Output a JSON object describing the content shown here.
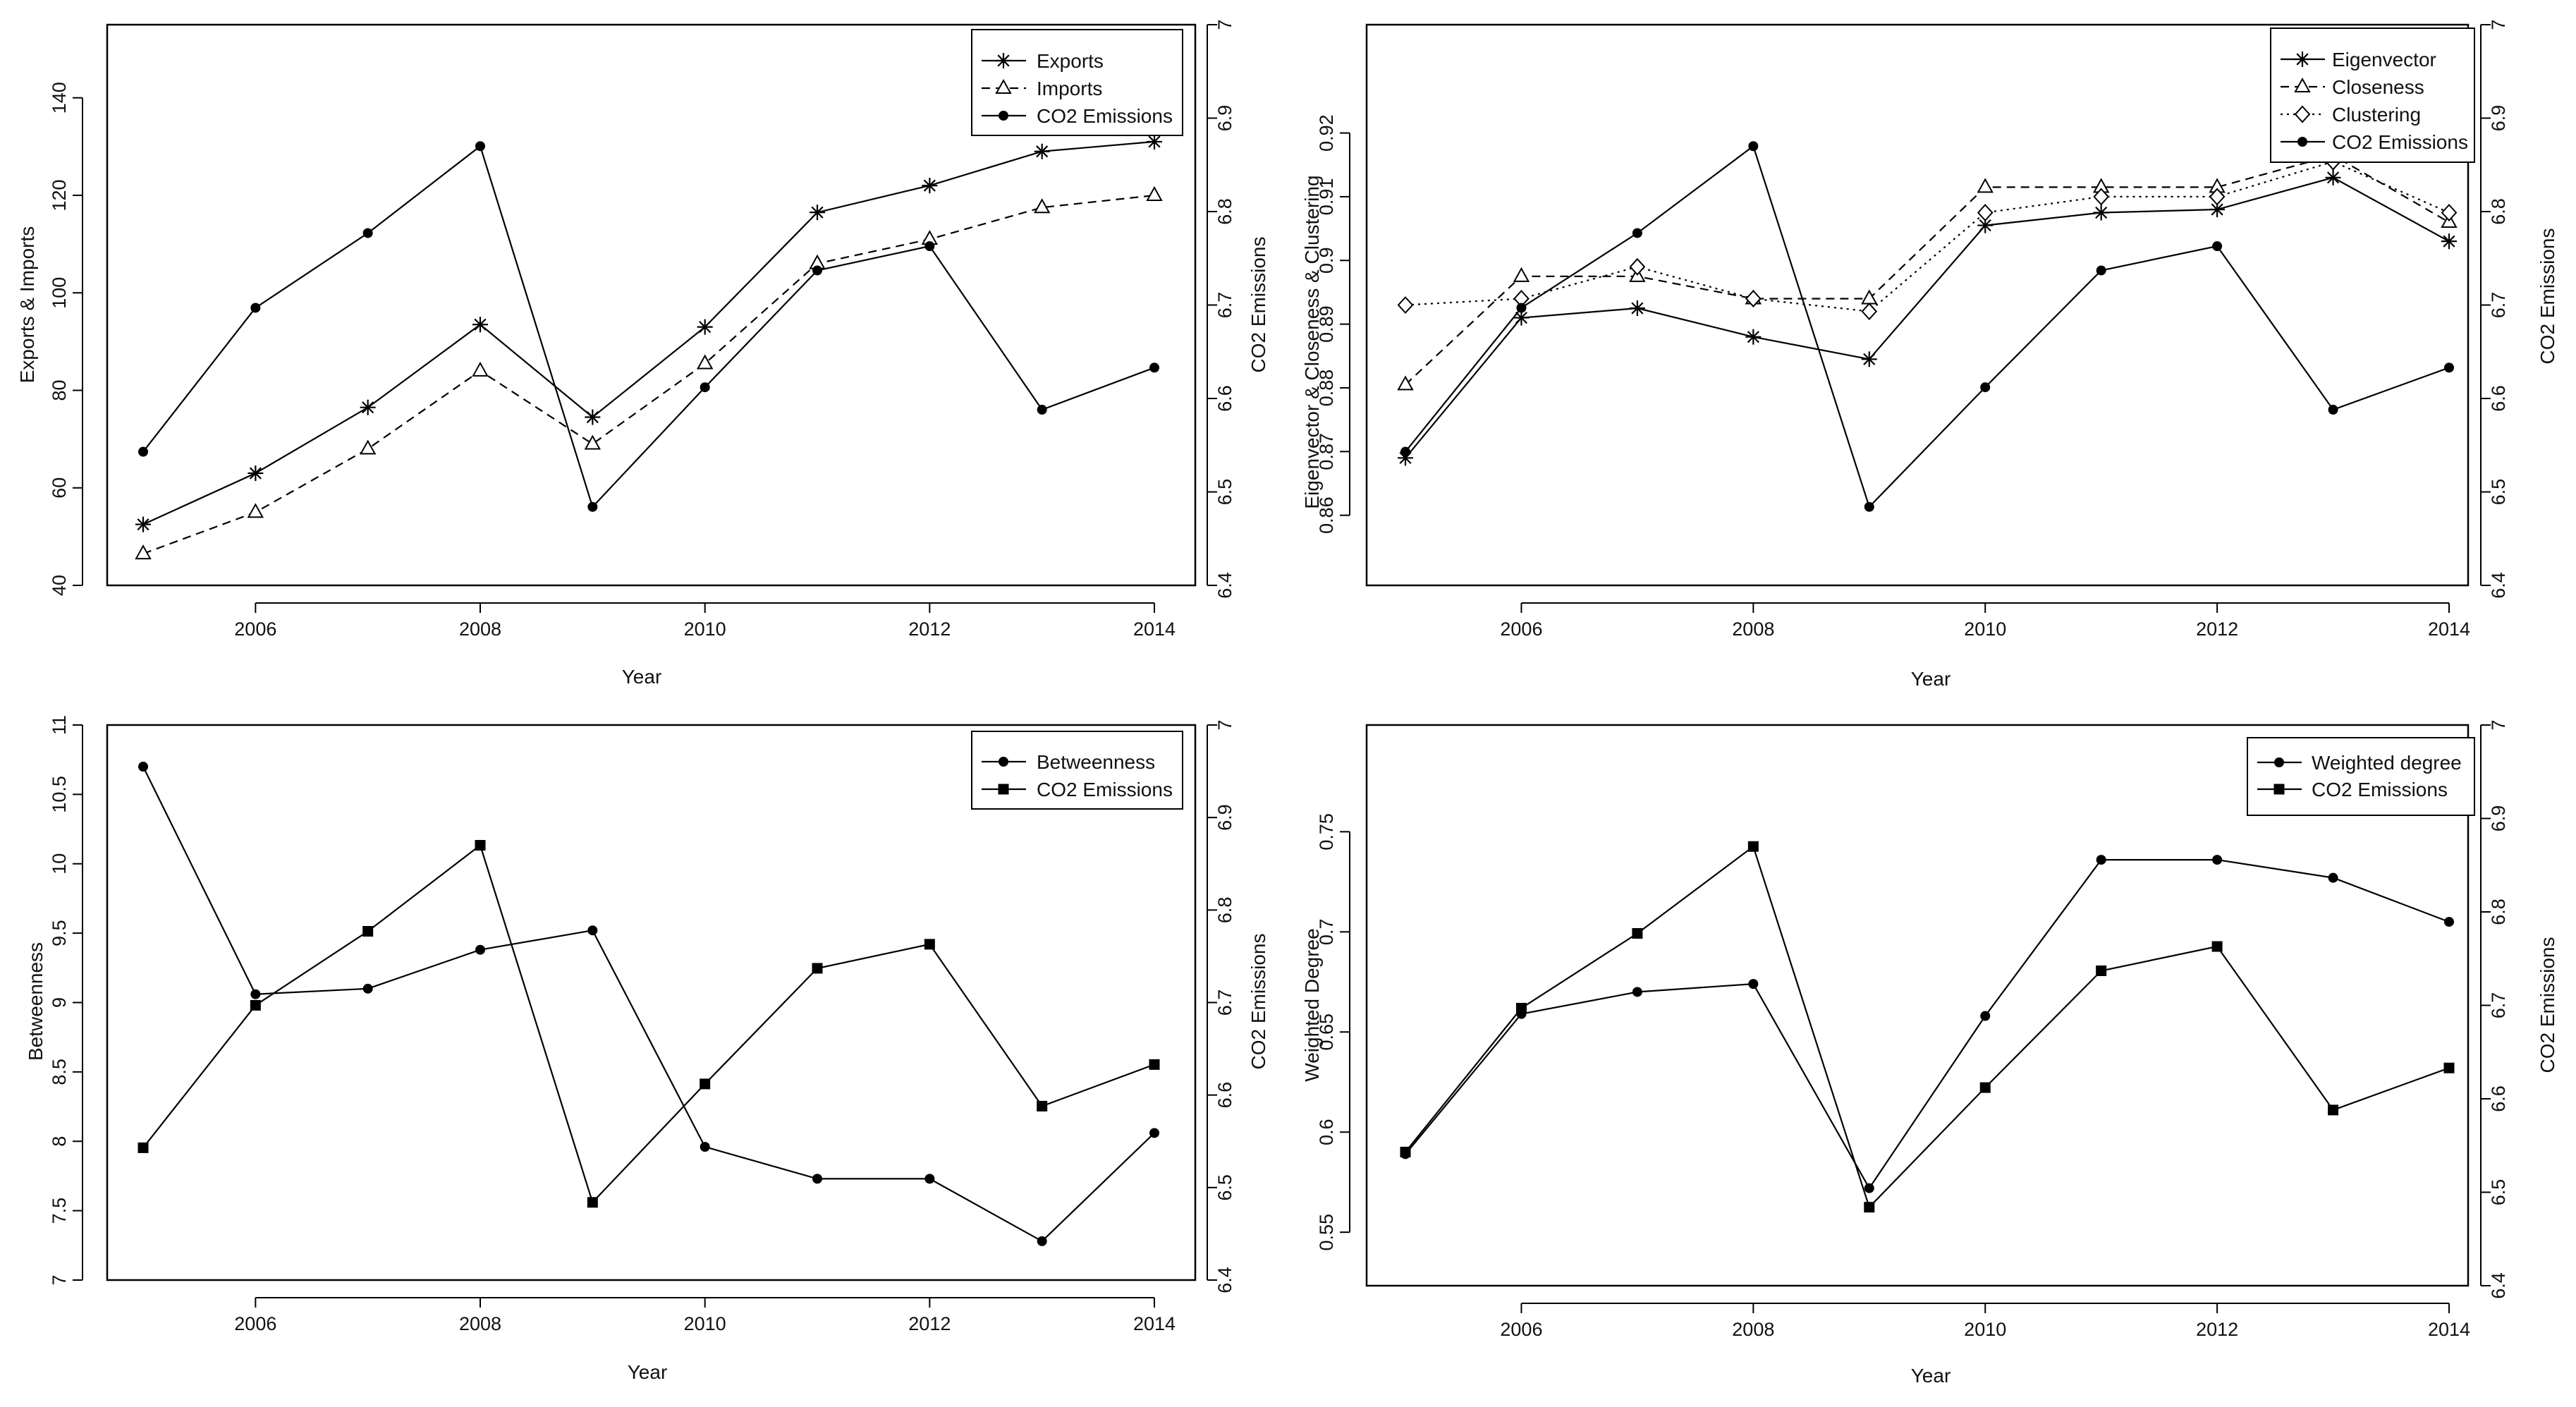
{
  "chart_data": [
    {
      "type": "line",
      "xlabel": "Year",
      "ylabel": "Exports & Imports",
      "y2label": "CO2 Emissions",
      "x": [
        2005,
        2006,
        2007,
        2008,
        2009,
        2010,
        2011,
        2012,
        2013,
        2014
      ],
      "xticks": [
        "2006",
        "2008",
        "2010",
        "2012",
        "2014"
      ],
      "ylim": [
        40,
        155
      ],
      "yticks": [
        "40",
        "60",
        "80",
        "100",
        "120",
        "140"
      ],
      "y2lim": [
        6.4,
        7.0
      ],
      "y2ticks": [
        "6.4",
        "6.5",
        "6.6",
        "6.7",
        "6.8",
        "6.9",
        "7"
      ],
      "legend_position": "top-right",
      "series": [
        {
          "name": "Exports",
          "axis": "left",
          "marker": "asterisk",
          "line": "solid",
          "values": [
            52.5,
            63,
            76.5,
            93.5,
            74.5,
            93,
            116.5,
            122,
            129,
            131
          ]
        },
        {
          "name": "Imports",
          "axis": "left",
          "marker": "triangle",
          "line": "dashed",
          "values": [
            46.5,
            55,
            68,
            84,
            69,
            85.5,
            106,
            111,
            117.5,
            120
          ]
        },
        {
          "name": "CO2 Emissions",
          "axis": "right",
          "marker": "dot",
          "line": "solid",
          "values": [
            6.543,
            6.697,
            6.777,
            6.87,
            6.484,
            6.612,
            6.737,
            6.763,
            6.588,
            6.633
          ]
        }
      ]
    },
    {
      "type": "line",
      "xlabel": "Year",
      "ylabel": "Eigenvector & Closeness & Clustering",
      "y2label": "CO2 Emissions",
      "x": [
        2005,
        2006,
        2007,
        2008,
        2009,
        2010,
        2011,
        2012,
        2013,
        2014
      ],
      "xticks": [
        "2006",
        "2008",
        "2010",
        "2012",
        "2014"
      ],
      "ylim": [
        0.849,
        0.937
      ],
      "yticks": [
        "0.86",
        "0.87",
        "0.88",
        "0.89",
        "0.9",
        "0.91",
        "0.92"
      ],
      "y2lim": [
        6.4,
        7.0
      ],
      "y2ticks": [
        "6.4",
        "6.5",
        "6.6",
        "6.7",
        "6.8",
        "6.9",
        "7"
      ],
      "legend_position": "top-right",
      "series": [
        {
          "name": "Eigenvector",
          "axis": "left",
          "marker": "asterisk",
          "line": "solid",
          "values": [
            0.869,
            0.891,
            0.8925,
            0.888,
            0.8845,
            0.9055,
            0.9075,
            0.908,
            0.913,
            0.903
          ]
        },
        {
          "name": "Closeness",
          "axis": "left",
          "marker": "triangle",
          "line": "dashed",
          "values": [
            0.8805,
            0.8975,
            0.8975,
            0.894,
            0.894,
            0.9115,
            0.9115,
            0.9115,
            0.9165,
            0.906
          ]
        },
        {
          "name": "Clustering",
          "axis": "left",
          "marker": "diamond",
          "line": "dotted",
          "values": [
            0.893,
            0.894,
            0.899,
            0.894,
            0.892,
            0.9075,
            0.91,
            0.91,
            0.9155,
            0.9075
          ]
        },
        {
          "name": "CO2 Emissions",
          "axis": "right",
          "marker": "dot",
          "line": "solid",
          "values": [
            6.543,
            6.697,
            6.777,
            6.87,
            6.484,
            6.612,
            6.737,
            6.763,
            6.588,
            6.633
          ]
        }
      ]
    },
    {
      "type": "line",
      "xlabel": "Year",
      "ylabel": "Betweenness",
      "y2label": "CO2 Emissions",
      "x": [
        2005,
        2006,
        2007,
        2008,
        2009,
        2010,
        2011,
        2012,
        2013,
        2014
      ],
      "xticks": [
        "2006",
        "2008",
        "2010",
        "2012",
        "2014"
      ],
      "ylim": [
        7.0,
        11.0
      ],
      "yticks": [
        "7",
        "7.5",
        "8",
        "8.5",
        "9",
        "9.5",
        "10",
        "10.5",
        "11"
      ],
      "y2lim": [
        6.4,
        7.0
      ],
      "y2ticks": [
        "6.4",
        "6.5",
        "6.6",
        "6.7",
        "6.8",
        "6.9",
        "7"
      ],
      "legend_position": "top-right",
      "series": [
        {
          "name": "Betweenness",
          "axis": "left",
          "marker": "dot",
          "line": "solid",
          "values": [
            10.7,
            9.06,
            9.1,
            9.38,
            9.52,
            7.96,
            7.73,
            7.73,
            7.28,
            8.06
          ]
        },
        {
          "name": "CO2 Emissions",
          "axis": "right",
          "marker": "square",
          "line": "solid",
          "values": [
            6.543,
            6.697,
            6.777,
            6.87,
            6.484,
            6.612,
            6.737,
            6.763,
            6.588,
            6.633
          ]
        }
      ]
    },
    {
      "type": "line",
      "xlabel": "Year",
      "ylabel": "Weighted Degree",
      "y2label": "CO2 Emissions",
      "x": [
        2005,
        2006,
        2007,
        2008,
        2009,
        2010,
        2011,
        2012,
        2013,
        2014
      ],
      "xticks": [
        "2006",
        "2008",
        "2010",
        "2012",
        "2014"
      ],
      "ylim": [
        0.5233,
        0.8033
      ],
      "yticks": [
        "0.55",
        "0.6",
        "0.65",
        "0.7",
        "0.75"
      ],
      "y2lim": [
        6.4,
        7.0
      ],
      "y2ticks": [
        "6.4",
        "6.5",
        "6.6",
        "6.7",
        "6.8",
        "6.9",
        "7"
      ],
      "legend_position": "top-right",
      "series": [
        {
          "name": "Weighted degree",
          "axis": "left",
          "marker": "dot",
          "line": "solid",
          "values": [
            0.589,
            0.659,
            0.67,
            0.674,
            0.572,
            0.658,
            0.736,
            0.736,
            0.727,
            0.705
          ]
        },
        {
          "name": "CO2 Emissions",
          "axis": "right",
          "marker": "square",
          "line": "solid",
          "values": [
            6.543,
            6.697,
            6.777,
            6.87,
            6.484,
            6.612,
            6.737,
            6.763,
            6.588,
            6.633
          ]
        }
      ]
    }
  ]
}
